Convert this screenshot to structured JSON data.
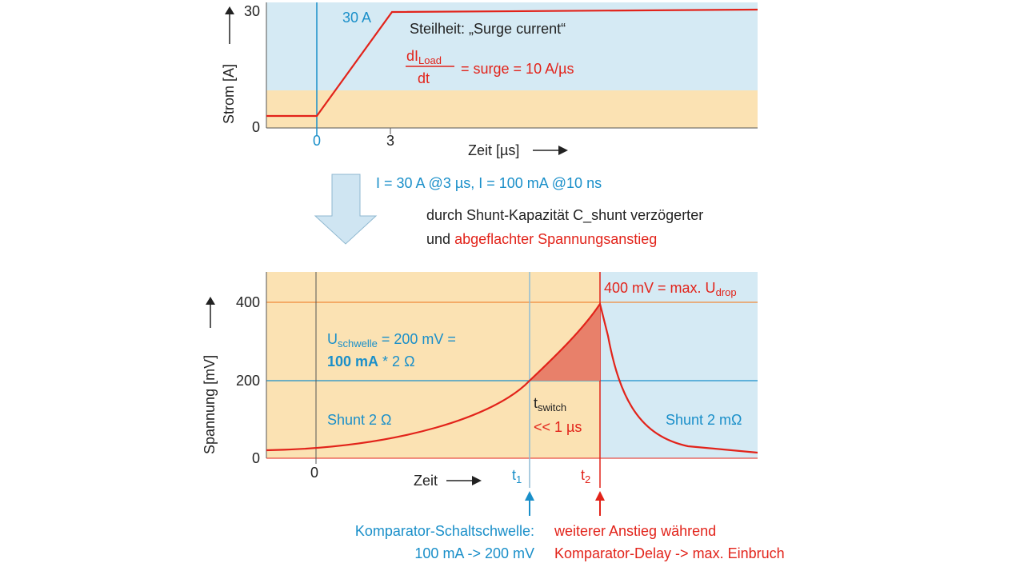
{
  "top_chart": {
    "y_label": "Strom [A]",
    "x_label": "Zeit [µs]",
    "y_ticks": [
      "30",
      "0"
    ],
    "x_ticks": [
      "0",
      "3"
    ],
    "peak_label": "30 A",
    "slope_title": "Steilheit: „Surge current“",
    "formula": {
      "numerator": "dI",
      "numerator_sub": "Load",
      "denominator": "dt",
      "rhs": "= surge = 10 A/µs"
    }
  },
  "transition": {
    "current_note": "I = 30 A @3 µs, I = 100 mA @10 ns",
    "line1": "durch Shunt-Kapazität C_shunt verzögerter",
    "line2_prefix": "und",
    "line2_highlight": "abgeflachter Spannungsanstieg"
  },
  "bottom_chart": {
    "y_label": "Spannung [mV]",
    "x_label": "Zeit",
    "y_ticks": [
      "400",
      "200",
      "0"
    ],
    "x_tick": "0",
    "max_label": {
      "main": "400 mV = max. U",
      "sub": "drop"
    },
    "threshold": {
      "main": "U",
      "sub": "schwelle",
      "rest": " = 200 mV =",
      "line2_bold": "100 mA",
      "line2_rest": " * 2 Ω"
    },
    "shunt_left": "Shunt 2 Ω",
    "shunt_right": "Shunt 2 mΩ",
    "t_switch": {
      "main": "t",
      "sub": "switch",
      "line2": "<< 1 µs"
    },
    "t1": {
      "main": "t",
      "sub": "1"
    },
    "t2": {
      "main": "t",
      "sub": "2"
    },
    "comparator": {
      "line1": "Komparator-Schaltschwelle:",
      "line2": "100 mA -> 200 mV"
    },
    "delay": {
      "line1": "weiterer Anstieg während",
      "line2": "Komparator-Delay -> max. Einbruch"
    }
  }
}
